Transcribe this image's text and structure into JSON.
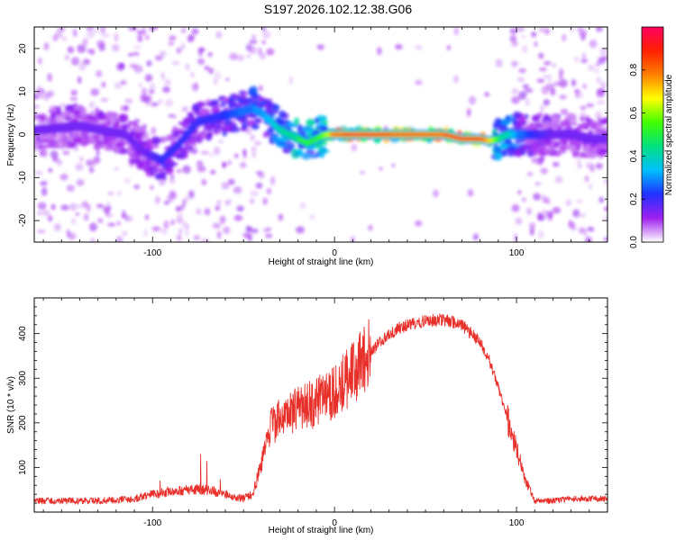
{
  "title": "S197.2026.102.12.38.G06",
  "colors": {
    "snr_line": "#e8302a",
    "axis": "#000000",
    "background": "#ffffff"
  },
  "chart_data": [
    {
      "type": "heatmap",
      "name": "spectrogram",
      "xlabel": "Height of straight line (km)",
      "ylabel": "Frequency (Hz)",
      "xlim": [
        -165,
        150
      ],
      "ylim": [
        -25,
        25
      ],
      "xticks": [
        -100,
        0,
        100
      ],
      "yticks": [
        -20,
        -10,
        0,
        10,
        20
      ],
      "colorbar": {
        "label": "Normalized spectral amplitude",
        "range": [
          0,
          1
        ],
        "ticks": [
          "0.0",
          "0.2",
          "0.4",
          "0.6",
          "0.8"
        ],
        "colormap": [
          "#ffffff",
          "#a020f0",
          "#2030ff",
          "#00c0ff",
          "#00e080",
          "#40ff00",
          "#ffff00",
          "#ff8000",
          "#ff2000",
          "#ff0060"
        ]
      },
      "ridge": {
        "heights_km": [
          -165,
          -140,
          -115,
          -105,
          -95,
          -85,
          -75,
          -65,
          -55,
          -45,
          -40,
          -35,
          -30,
          -25,
          -20,
          -15,
          -10,
          -5,
          0,
          10,
          20,
          30,
          40,
          50,
          60,
          70,
          80,
          85,
          90,
          95,
          100,
          110,
          120,
          130,
          140,
          150
        ],
        "frequency_hz": [
          1,
          2,
          0,
          -4,
          -6,
          -2,
          3,
          4,
          5,
          6,
          5,
          3,
          1,
          0,
          -1,
          -2,
          -1,
          0,
          0,
          0,
          0,
          0,
          0,
          0,
          0,
          -1,
          -1,
          -1.5,
          -1,
          0,
          0,
          0,
          0,
          0,
          -1,
          -1
        ],
        "amplitude": [
          0.15,
          0.15,
          0.15,
          0.15,
          0.2,
          0.2,
          0.2,
          0.2,
          0.25,
          0.3,
          0.3,
          0.35,
          0.4,
          0.45,
          0.5,
          0.5,
          0.5,
          0.6,
          0.85,
          0.95,
          0.95,
          0.9,
          0.85,
          0.85,
          0.9,
          0.95,
          0.9,
          0.7,
          0.5,
          0.4,
          0.3,
          0.2,
          0.15,
          0.15,
          0.15,
          0.15
        ]
      }
    },
    {
      "type": "line",
      "name": "snr",
      "xlabel": "Height of straight line (km)",
      "ylabel": "SNR (10 * v/v)",
      "xlim": [
        -165,
        150
      ],
      "ylim": [
        0,
        480
      ],
      "xticks": [
        -100,
        0,
        100
      ],
      "yticks": [
        100,
        200,
        300,
        400
      ],
      "series": [
        {
          "name": "SNR",
          "x": [
            -165,
            -150,
            -130,
            -110,
            -100,
            -90,
            -80,
            -70,
            -60,
            -50,
            -45,
            -40,
            -35,
            -30,
            -20,
            -10,
            0,
            10,
            20,
            30,
            40,
            50,
            60,
            70,
            80,
            85,
            90,
            95,
            100,
            105,
            110,
            120,
            130,
            140,
            150
          ],
          "y": [
            25,
            25,
            25,
            30,
            40,
            45,
            50,
            50,
            40,
            30,
            40,
            110,
            190,
            210,
            230,
            250,
            270,
            310,
            360,
            400,
            420,
            430,
            430,
            420,
            380,
            340,
            280,
            210,
            140,
            70,
            25,
            25,
            30,
            30,
            30
          ]
        }
      ]
    }
  ]
}
